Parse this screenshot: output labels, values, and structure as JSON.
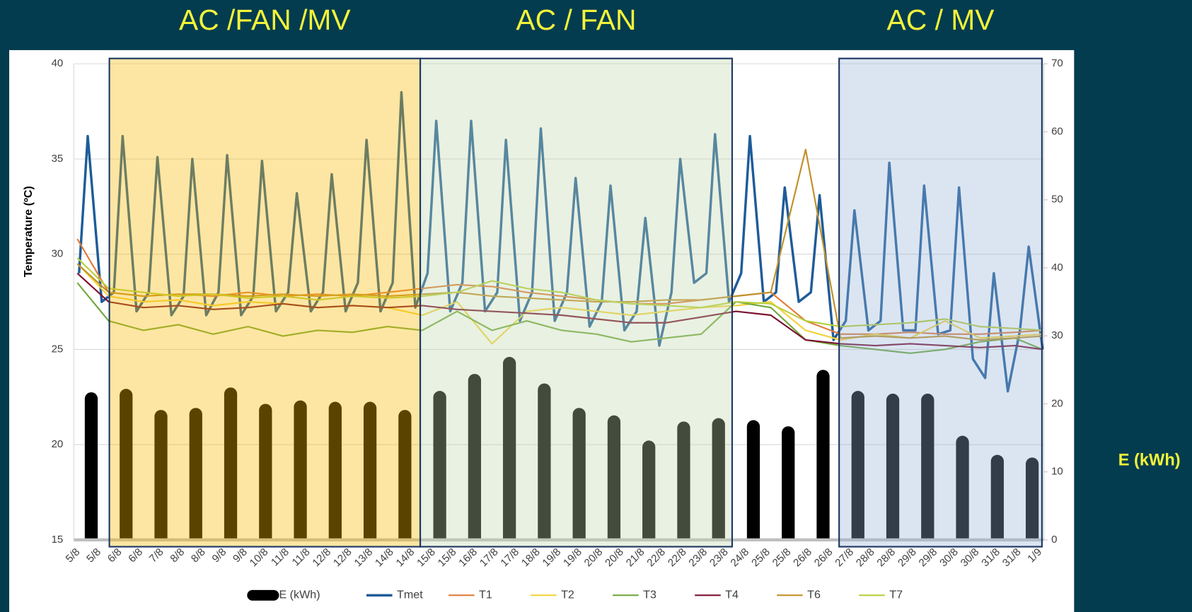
{
  "chart_data": {
    "type": "combo",
    "y_label": "Temperature (ºC)",
    "y2_label": "E (kWh)",
    "xlim": [
      4.5,
      32.33
    ],
    "xticks": [
      {
        "value": 4.5,
        "label": "5/8"
      },
      {
        "value": 5.1,
        "label": "5/8"
      },
      {
        "value": 5.7,
        "label": "6/8"
      },
      {
        "value": 6.3,
        "label": "6/8"
      },
      {
        "value": 6.9,
        "label": "7/8"
      },
      {
        "value": 7.5,
        "label": "8/8"
      },
      {
        "value": 8.1,
        "label": "8/8"
      },
      {
        "value": 8.7,
        "label": "9/8"
      },
      {
        "value": 9.3,
        "label": "9/8"
      },
      {
        "value": 9.9,
        "label": "10/8"
      },
      {
        "value": 10.5,
        "label": "11/8"
      },
      {
        "value": 11.1,
        "label": "11/8"
      },
      {
        "value": 11.7,
        "label": "12/8"
      },
      {
        "value": 12.3,
        "label": "12/8"
      },
      {
        "value": 12.9,
        "label": "13/8"
      },
      {
        "value": 13.5,
        "label": "14/8"
      },
      {
        "value": 14.1,
        "label": "14/8"
      },
      {
        "value": 14.7,
        "label": "15/8"
      },
      {
        "value": 15.3,
        "label": "15/8"
      },
      {
        "value": 15.9,
        "label": "16/8"
      },
      {
        "value": 16.5,
        "label": "17/8"
      },
      {
        "value": 17.1,
        "label": "17/8"
      },
      {
        "value": 17.7,
        "label": "18/8"
      },
      {
        "value": 18.3,
        "label": "19/8"
      },
      {
        "value": 18.9,
        "label": "19/8"
      },
      {
        "value": 19.5,
        "label": "20/8"
      },
      {
        "value": 20.1,
        "label": "20/8"
      },
      {
        "value": 20.7,
        "label": "21/8"
      },
      {
        "value": 21.3,
        "label": "22/8"
      },
      {
        "value": 21.9,
        "label": "22/8"
      },
      {
        "value": 22.5,
        "label": "23/8"
      },
      {
        "value": 23.1,
        "label": "23/8"
      },
      {
        "value": 23.7,
        "label": "24/8"
      },
      {
        "value": 24.3,
        "label": "25/8"
      },
      {
        "value": 24.9,
        "label": "25/8"
      },
      {
        "value": 25.5,
        "label": "26/8"
      },
      {
        "value": 26.1,
        "label": "26/8"
      },
      {
        "value": 26.7,
        "label": "27/8"
      },
      {
        "value": 27.3,
        "label": "28/8"
      },
      {
        "value": 27.9,
        "label": "28/8"
      },
      {
        "value": 28.5,
        "label": "29/8"
      },
      {
        "value": 29.1,
        "label": "29/8"
      },
      {
        "value": 29.7,
        "label": "30/8"
      },
      {
        "value": 30.3,
        "label": "30/8"
      },
      {
        "value": 30.9,
        "label": "31/8"
      },
      {
        "value": 31.5,
        "label": "31/8"
      },
      {
        "value": 32.1,
        "label": "1/9"
      }
    ],
    "ylim": [
      15,
      40
    ],
    "yticks": [
      15,
      20,
      25,
      30,
      35,
      40
    ],
    "y2lim": [
      0,
      70
    ],
    "y2ticks": [
      0,
      10,
      20,
      30,
      40,
      50,
      60,
      70
    ],
    "grid": true,
    "regions": [
      {
        "label": "AC /FAN /MV",
        "x": [
          5.52,
          14.44
        ],
        "color": "rgba(250,186,0,0.36)"
      },
      {
        "label": "AC / FAN",
        "x": [
          14.44,
          23.39
        ],
        "color": "rgba(191,214,171,0.35)"
      },
      {
        "label": "AC / MV",
        "x": [
          26.46,
          32.28
        ],
        "color": "rgba(150,179,215,0.34)"
      }
    ],
    "region_border": "#1f3864",
    "series": [
      {
        "name": "E (kWh)",
        "type": "bar",
        "axis": "y2",
        "color": "#000000",
        "x": [
          5,
          6,
          7,
          8,
          9,
          10,
          11,
          12,
          13,
          14,
          15,
          16,
          17,
          18,
          19,
          20,
          21,
          22,
          23,
          24,
          25,
          26,
          27,
          28,
          29,
          30,
          31,
          32
        ],
        "values": [
          21.7,
          22.2,
          19.1,
          19.4,
          22.4,
          20.0,
          20.5,
          20.3,
          20.3,
          19.1,
          21.9,
          24.4,
          26.9,
          23.0,
          19.4,
          18.3,
          14.6,
          17.4,
          17.9,
          17.6,
          16.7,
          25.0,
          21.9,
          21.5,
          21.5,
          15.3,
          12.5,
          12.1
        ]
      },
      {
        "name": "Tmet",
        "type": "line",
        "color": "#1f5c99",
        "width": 3.2,
        "x": [
          4.65,
          4.9,
          5.3,
          5.65,
          5.9,
          6.3,
          6.65,
          6.9,
          7.3,
          7.65,
          7.9,
          8.3,
          8.65,
          8.9,
          9.3,
          9.65,
          9.9,
          10.3,
          10.65,
          10.9,
          11.3,
          11.65,
          11.9,
          12.3,
          12.65,
          12.9,
          13.3,
          13.65,
          13.9,
          14.3,
          14.65,
          14.9,
          15.3,
          15.65,
          15.9,
          16.3,
          16.65,
          16.9,
          17.3,
          17.65,
          17.9,
          18.3,
          18.65,
          18.9,
          19.3,
          19.65,
          19.9,
          20.3,
          20.65,
          20.9,
          21.3,
          21.65,
          21.9,
          22.3,
          22.65,
          22.9,
          23.3,
          23.65,
          23.9,
          24.3,
          24.65,
          24.9,
          25.3,
          25.65,
          25.9,
          26.3,
          26.65,
          26.9,
          27.3,
          27.65,
          27.9,
          28.3,
          28.65,
          28.9,
          29.3,
          29.65,
          29.9,
          30.3,
          30.65,
          30.9,
          31.3,
          31.65,
          31.9,
          32.3
        ],
        "values": [
          29.0,
          36.2,
          27.5,
          28.0,
          36.2,
          27.0,
          28.0,
          35.1,
          26.8,
          27.8,
          35.0,
          26.8,
          28.0,
          35.2,
          26.8,
          27.8,
          34.9,
          27.0,
          28.0,
          33.2,
          27.0,
          28.0,
          34.2,
          27.0,
          28.5,
          36.0,
          27.0,
          28.5,
          38.5,
          27.2,
          29.0,
          37.0,
          27.0,
          28.5,
          37.0,
          27.0,
          28.0,
          36.0,
          26.5,
          28.0,
          36.6,
          26.5,
          28.0,
          34.0,
          26.2,
          27.5,
          33.6,
          26.0,
          27.0,
          31.9,
          25.2,
          28.0,
          35.0,
          28.5,
          29.0,
          36.3,
          27.5,
          29.0,
          36.2,
          27.5,
          28.0,
          33.5,
          27.5,
          28.0,
          33.1,
          25.5,
          26.5,
          32.3,
          26.0,
          26.5,
          34.8,
          26.0,
          26.0,
          33.6,
          25.8,
          26.0,
          33.5,
          24.5,
          23.5,
          29.0,
          22.8,
          26.0,
          30.4,
          25.0
        ]
      },
      {
        "name": "T1",
        "type": "line",
        "color": "#e07b39",
        "width": 2,
        "x": [
          4.6,
          5.5,
          6.5,
          7.5,
          8.5,
          9.5,
          10.5,
          11.5,
          12.5,
          13.5,
          14.5,
          15.5,
          16.5,
          17.5,
          18.5,
          19.5,
          20.5,
          21.5,
          22.5,
          23.5,
          24.5,
          25.5,
          26.5,
          27.5,
          28.5,
          29.5,
          30.5,
          31.5,
          32.3
        ],
        "values": [
          30.8,
          28.0,
          27.8,
          27.9,
          27.8,
          28.0,
          27.8,
          27.9,
          27.8,
          28.0,
          28.2,
          28.4,
          28.3,
          28.0,
          27.8,
          27.6,
          27.4,
          27.4,
          27.6,
          27.8,
          28.0,
          26.5,
          25.8,
          25.8,
          25.9,
          25.8,
          25.8,
          25.9,
          26.0
        ]
      },
      {
        "name": "T2",
        "type": "line",
        "color": "#f2d33c",
        "width": 2,
        "x": [
          4.6,
          5.5,
          6.5,
          7.5,
          8.5,
          9.5,
          10.5,
          11.5,
          12.5,
          13.5,
          14.5,
          15.5,
          16.5,
          17.5,
          18.5,
          19.5,
          20.5,
          21.5,
          22.5,
          23.5,
          24.5,
          25.5,
          26.5,
          27.5,
          28.5,
          29.5,
          30.5,
          31.5,
          32.3
        ],
        "values": [
          29.5,
          27.8,
          27.5,
          27.6,
          27.3,
          27.5,
          27.4,
          27.2,
          27.3,
          27.2,
          26.8,
          27.5,
          25.3,
          27.0,
          27.2,
          27.0,
          26.8,
          27.0,
          27.2,
          27.3,
          27.5,
          26.0,
          25.5,
          25.8,
          25.6,
          26.5,
          25.6,
          25.7,
          25.8
        ]
      },
      {
        "name": "T3",
        "type": "line",
        "color": "#70a83b",
        "width": 2,
        "x": [
          4.6,
          5.5,
          6.5,
          7.5,
          8.5,
          9.5,
          10.5,
          11.5,
          12.5,
          13.5,
          14.5,
          15.5,
          16.5,
          17.5,
          18.5,
          19.5,
          20.5,
          21.5,
          22.5,
          23.5,
          24.5,
          25.5,
          26.5,
          27.5,
          28.5,
          29.5,
          30.5,
          31.5,
          32.3
        ],
        "values": [
          28.5,
          26.5,
          26.0,
          26.3,
          25.8,
          26.2,
          25.7,
          26.0,
          25.9,
          26.2,
          26.0,
          27.0,
          26.0,
          26.5,
          26.0,
          25.8,
          25.4,
          25.6,
          25.8,
          27.5,
          27.2,
          25.5,
          25.2,
          25.0,
          24.8,
          25.0,
          25.4,
          25.6,
          25.0
        ]
      },
      {
        "name": "T4",
        "type": "line",
        "color": "#7b1230",
        "width": 2,
        "x": [
          4.6,
          5.5,
          6.5,
          7.5,
          8.5,
          9.5,
          10.5,
          11.5,
          12.5,
          13.5,
          14.5,
          15.5,
          16.5,
          17.5,
          18.5,
          19.5,
          20.5,
          21.5,
          22.5,
          23.5,
          24.5,
          25.5,
          26.5,
          27.5,
          28.5,
          29.5,
          30.5,
          31.5,
          32.3
        ],
        "values": [
          29.0,
          27.5,
          27.2,
          27.3,
          27.1,
          27.2,
          27.4,
          27.2,
          27.3,
          27.2,
          27.3,
          27.1,
          27.0,
          26.9,
          26.8,
          26.6,
          26.4,
          26.4,
          26.7,
          27.0,
          26.8,
          25.5,
          25.3,
          25.2,
          25.3,
          25.2,
          25.1,
          25.2,
          25.0
        ]
      },
      {
        "name": "T6",
        "type": "line",
        "color": "#c0902a",
        "width": 2,
        "x": [
          4.6,
          5.5,
          6.5,
          7.5,
          8.5,
          9.5,
          10.5,
          11.5,
          12.5,
          13.5,
          14.5,
          15.5,
          16.5,
          17.5,
          18.5,
          19.5,
          20.5,
          21.5,
          22.5,
          23.5,
          24.5,
          25.5,
          26.5,
          27.5,
          28.5,
          29.5,
          30.5,
          31.5,
          32.3
        ],
        "values": [
          29.5,
          28.0,
          27.8,
          27.9,
          27.9,
          27.8,
          27.9,
          27.8,
          27.9,
          27.8,
          27.9,
          28.0,
          27.8,
          27.7,
          27.6,
          27.5,
          27.5,
          27.6,
          27.6,
          27.8,
          28.0,
          35.5,
          25.6,
          25.7,
          25.6,
          25.7,
          25.5,
          25.6,
          25.7
        ]
      },
      {
        "name": "T7",
        "type": "line",
        "color": "#b8cf3a",
        "width": 2,
        "x": [
          4.6,
          5.5,
          6.5,
          7.5,
          8.5,
          9.5,
          10.5,
          11.5,
          12.5,
          13.5,
          14.5,
          15.5,
          16.5,
          17.5,
          18.5,
          19.5,
          20.5,
          21.5,
          22.5,
          23.5,
          24.5,
          25.5,
          26.5,
          27.5,
          28.5,
          29.5,
          30.5,
          31.5,
          32.3
        ],
        "values": [
          29.8,
          28.2,
          28.0,
          27.8,
          27.9,
          27.7,
          27.8,
          27.6,
          27.8,
          27.7,
          27.8,
          28.0,
          28.6,
          28.2,
          28.0,
          27.6,
          27.4,
          27.3,
          27.2,
          27.5,
          27.4,
          26.5,
          26.2,
          26.3,
          26.4,
          26.6,
          26.2,
          26.1,
          26.0
        ]
      }
    ]
  }
}
